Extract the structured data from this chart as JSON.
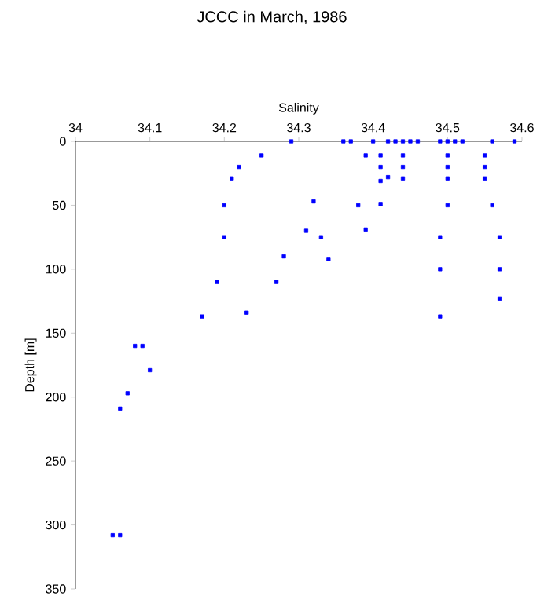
{
  "chart_data": {
    "type": "scatter",
    "title": "JCCC in March, 1986",
    "xlabel": "Salinity",
    "ylabel": "Depth [m]",
    "x": [
      34.29,
      34.36,
      34.37,
      34.4,
      34.42,
      34.43,
      34.44,
      34.45,
      34.46,
      34.49,
      34.5,
      34.51,
      34.52,
      34.56,
      34.59,
      34.25,
      34.39,
      34.41,
      34.44,
      34.5,
      34.55,
      34.22,
      34.41,
      34.44,
      34.5,
      34.55,
      34.21,
      34.42,
      34.41,
      34.44,
      34.5,
      34.55,
      34.2,
      34.32,
      34.38,
      34.41,
      34.5,
      34.56,
      34.31,
      34.39,
      34.2,
      34.49,
      34.57,
      34.33,
      34.28,
      34.34,
      34.49,
      34.57,
      34.19,
      34.27,
      34.57,
      34.23,
      34.17,
      34.49,
      34.08,
      34.09,
      34.1,
      34.07,
      34.06,
      34.05,
      34.06
    ],
    "series": [
      {
        "color": "#0000ff",
        "values": [
          0,
          0,
          0,
          0,
          0,
          0,
          0,
          0,
          0,
          0,
          0,
          0,
          0,
          0,
          0,
          11,
          11,
          11,
          11,
          11,
          11,
          20,
          20,
          20,
          20,
          20,
          29,
          28,
          31,
          29,
          29,
          29,
          50,
          47,
          50,
          49,
          50,
          50,
          70,
          69,
          75,
          75,
          75,
          75,
          90,
          92,
          100,
          100,
          110,
          110,
          123,
          134,
          137,
          137,
          160,
          160,
          179,
          197,
          209,
          308,
          308
        ]
      }
    ],
    "xlim": [
      34,
      34.6
    ],
    "ylim": [
      350,
      0
    ],
    "xticks": [
      34,
      34.1,
      34.2,
      34.3,
      34.4,
      34.5,
      34.6
    ],
    "yticks": [
      0,
      50,
      100,
      150,
      200,
      250,
      300,
      350
    ],
    "marker": "square",
    "grid": false
  }
}
